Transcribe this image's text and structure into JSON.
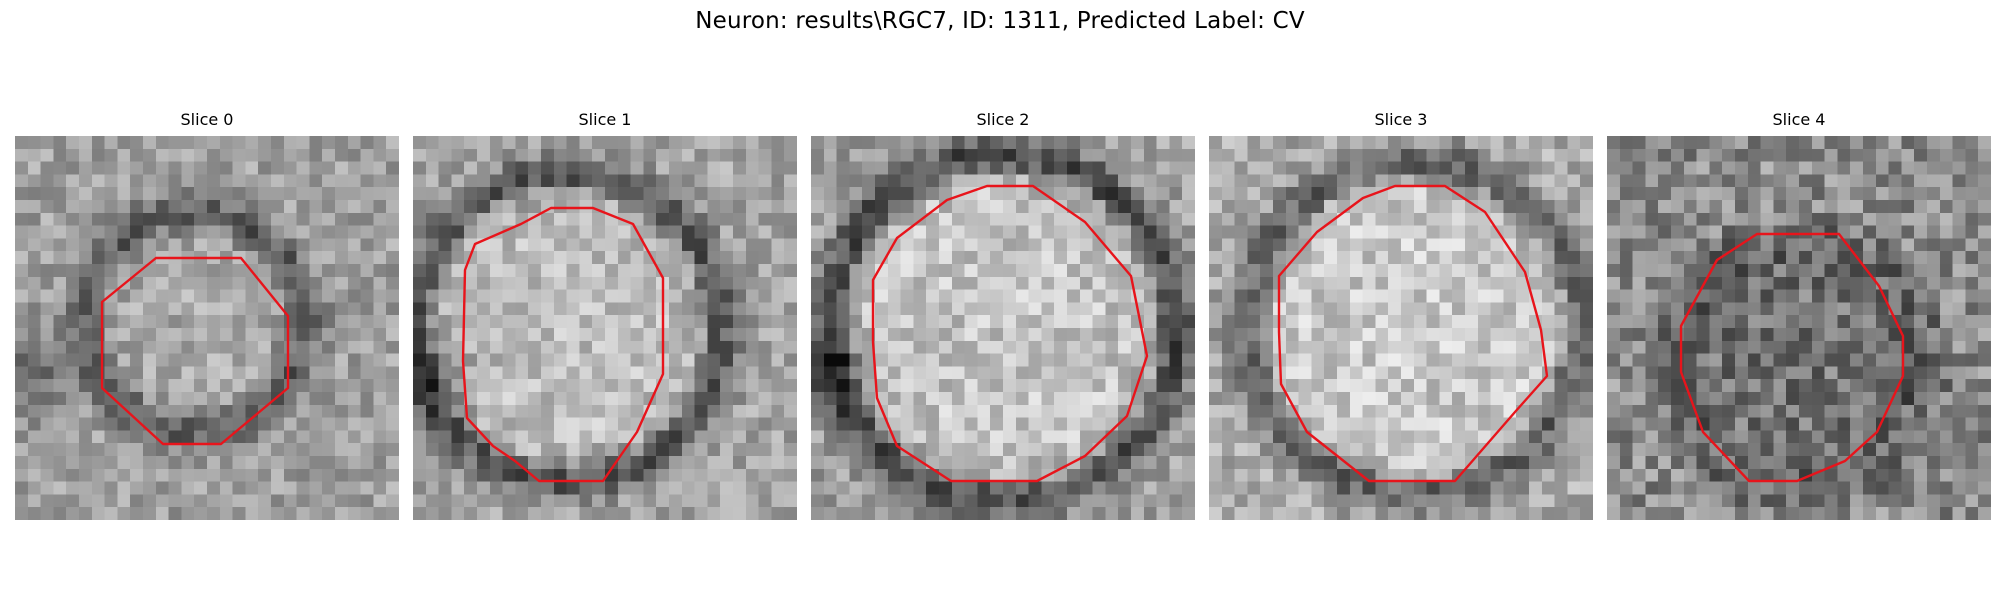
{
  "figure": {
    "title": "Neuron: results\\RGC7, ID: 1311, Predicted Label: CV"
  },
  "contour_color": "#e8141b",
  "slices": [
    {
      "title": "Slice 0"
    },
    {
      "title": "Slice 1"
    },
    {
      "title": "Slice 2"
    },
    {
      "title": "Slice 3"
    },
    {
      "title": "Slice 4"
    }
  ]
}
